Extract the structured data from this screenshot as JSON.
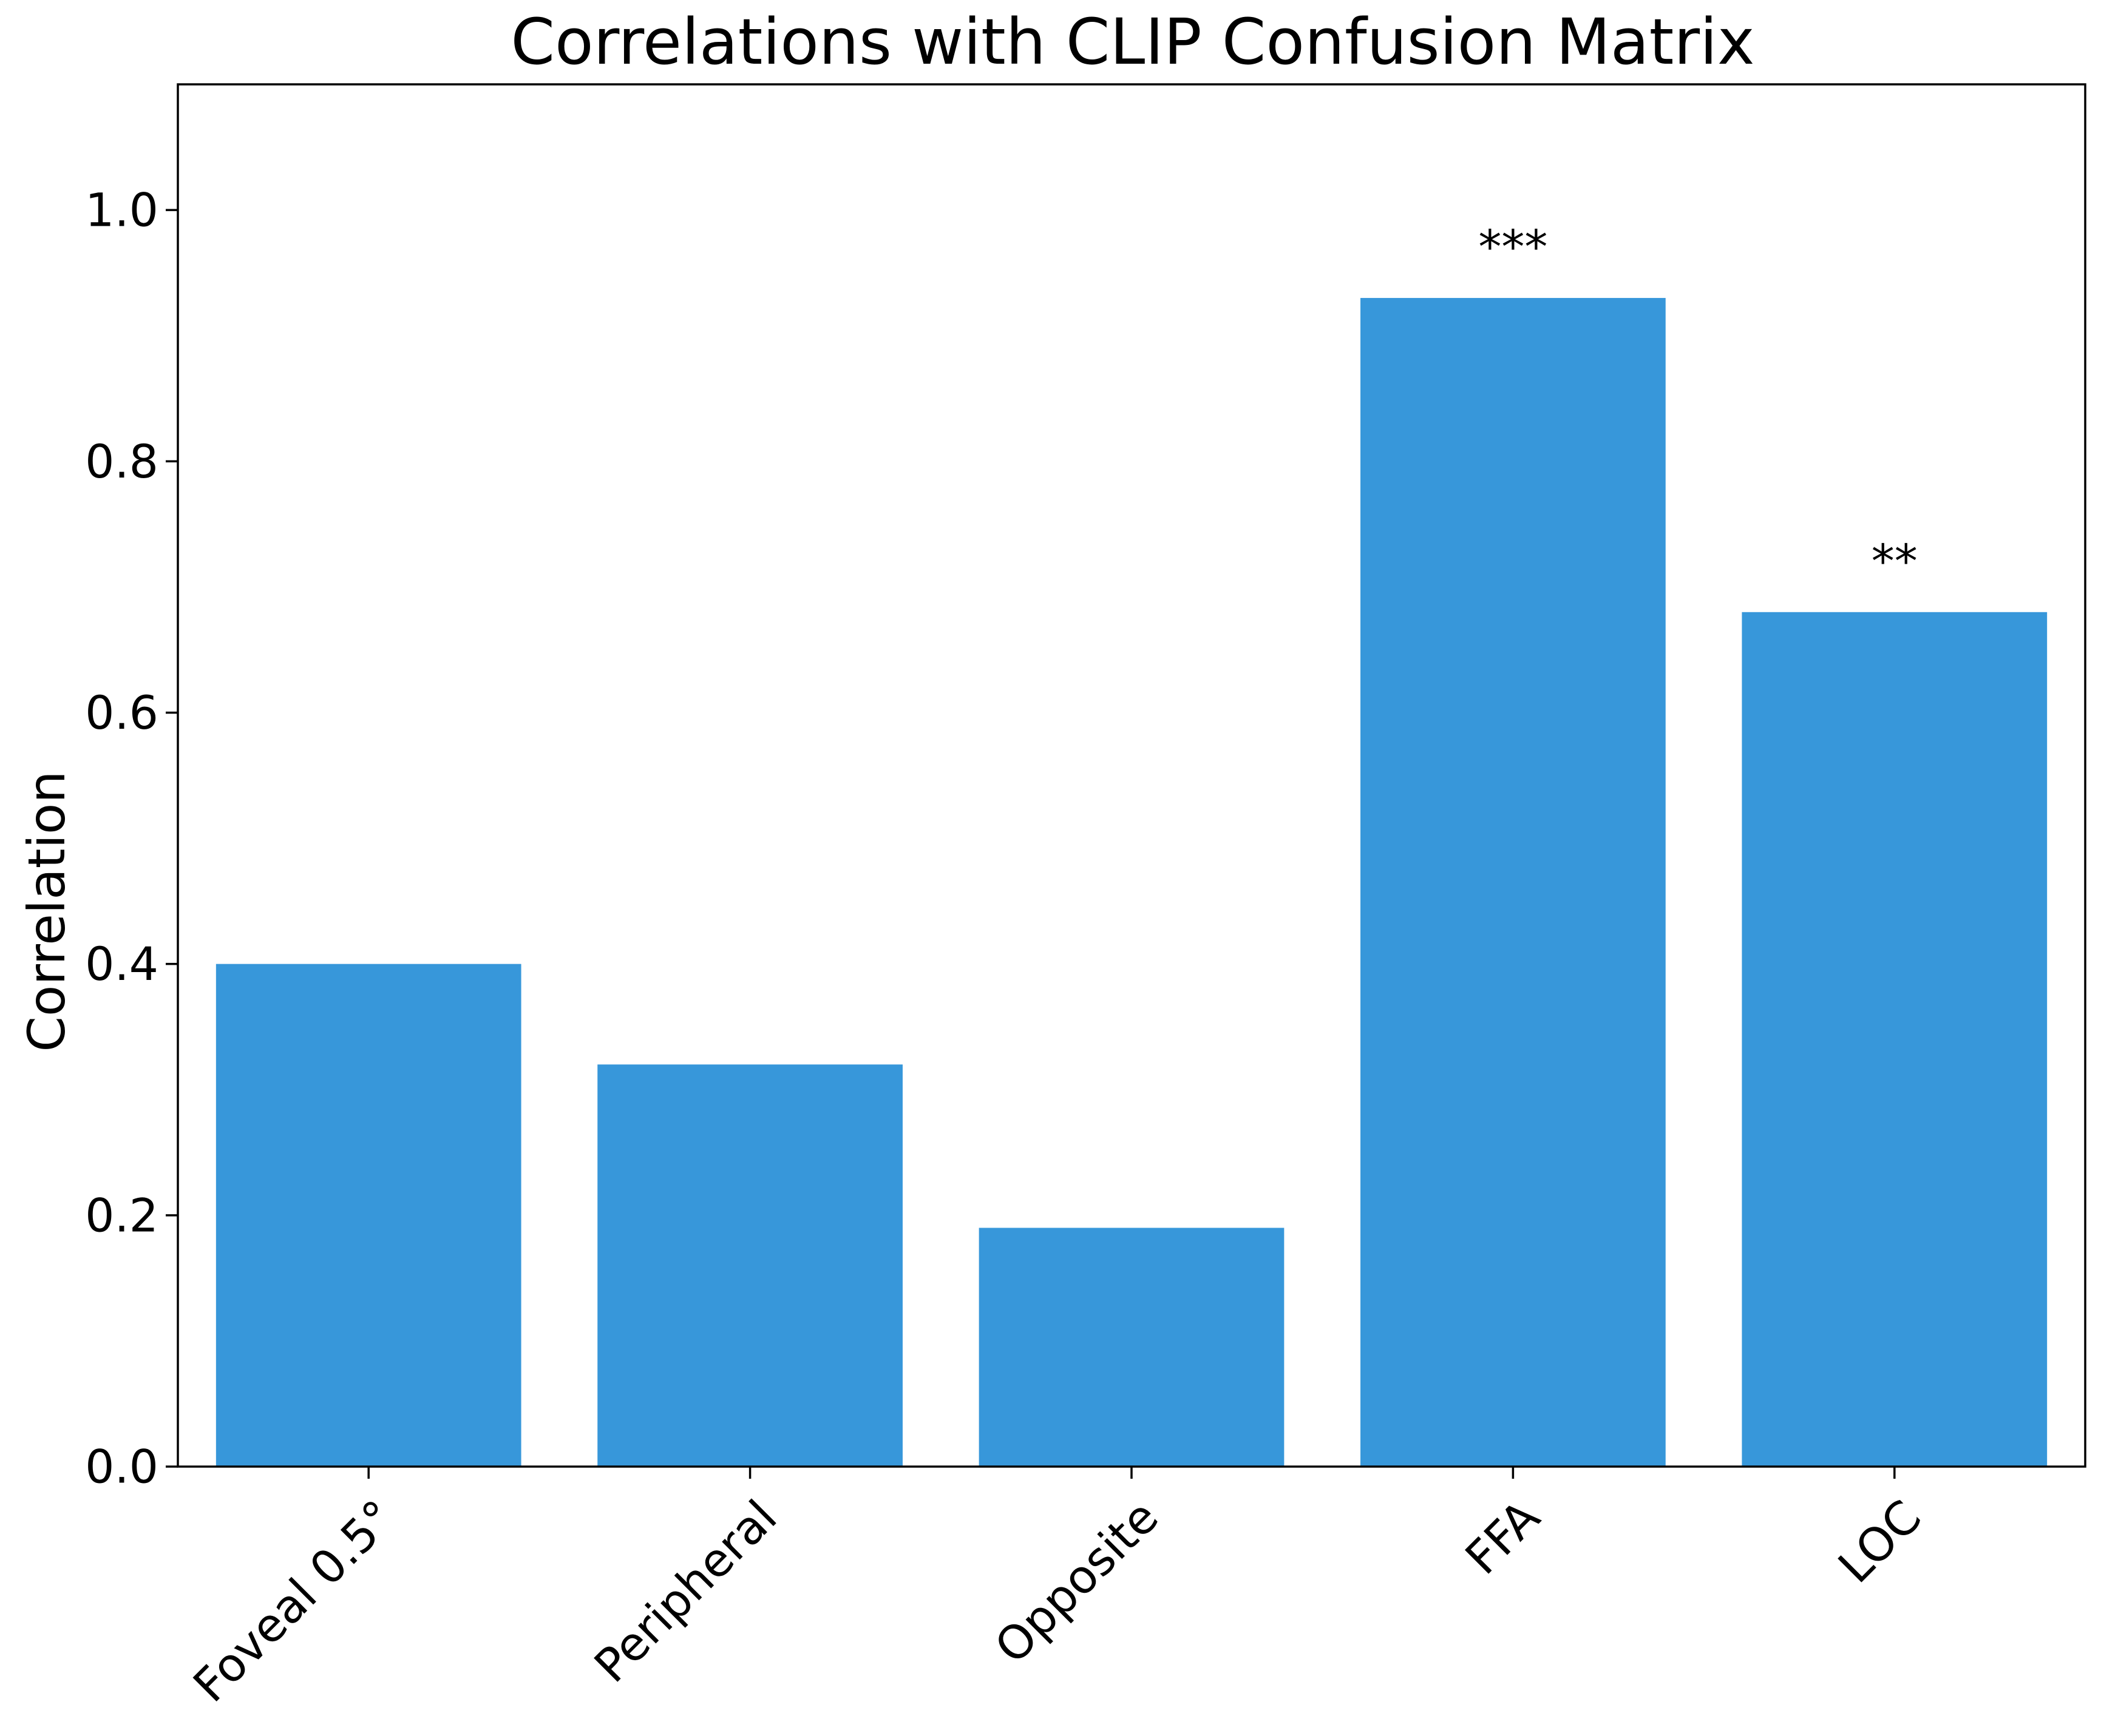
{
  "chart_data": {
    "type": "bar",
    "title": "Correlations with CLIP Confusion Matrix",
    "xlabel": "",
    "ylabel": "Correlation",
    "categories": [
      "Foveal 0.5°",
      "Peripheral",
      "Opposite",
      "FFA",
      "LOC"
    ],
    "values": [
      0.4,
      0.32,
      0.19,
      0.93,
      0.68
    ],
    "annotations": [
      "",
      "",
      "",
      "***",
      "**"
    ],
    "ylim": [
      0,
      1.1
    ],
    "yticks": [
      0.0,
      0.2,
      0.4,
      0.6,
      0.8,
      1.0
    ],
    "ytick_labels": [
      "0.0",
      "0.2",
      "0.4",
      "0.6",
      "0.8",
      "1.0"
    ],
    "grid": false,
    "bar_color": "#3797da"
  }
}
